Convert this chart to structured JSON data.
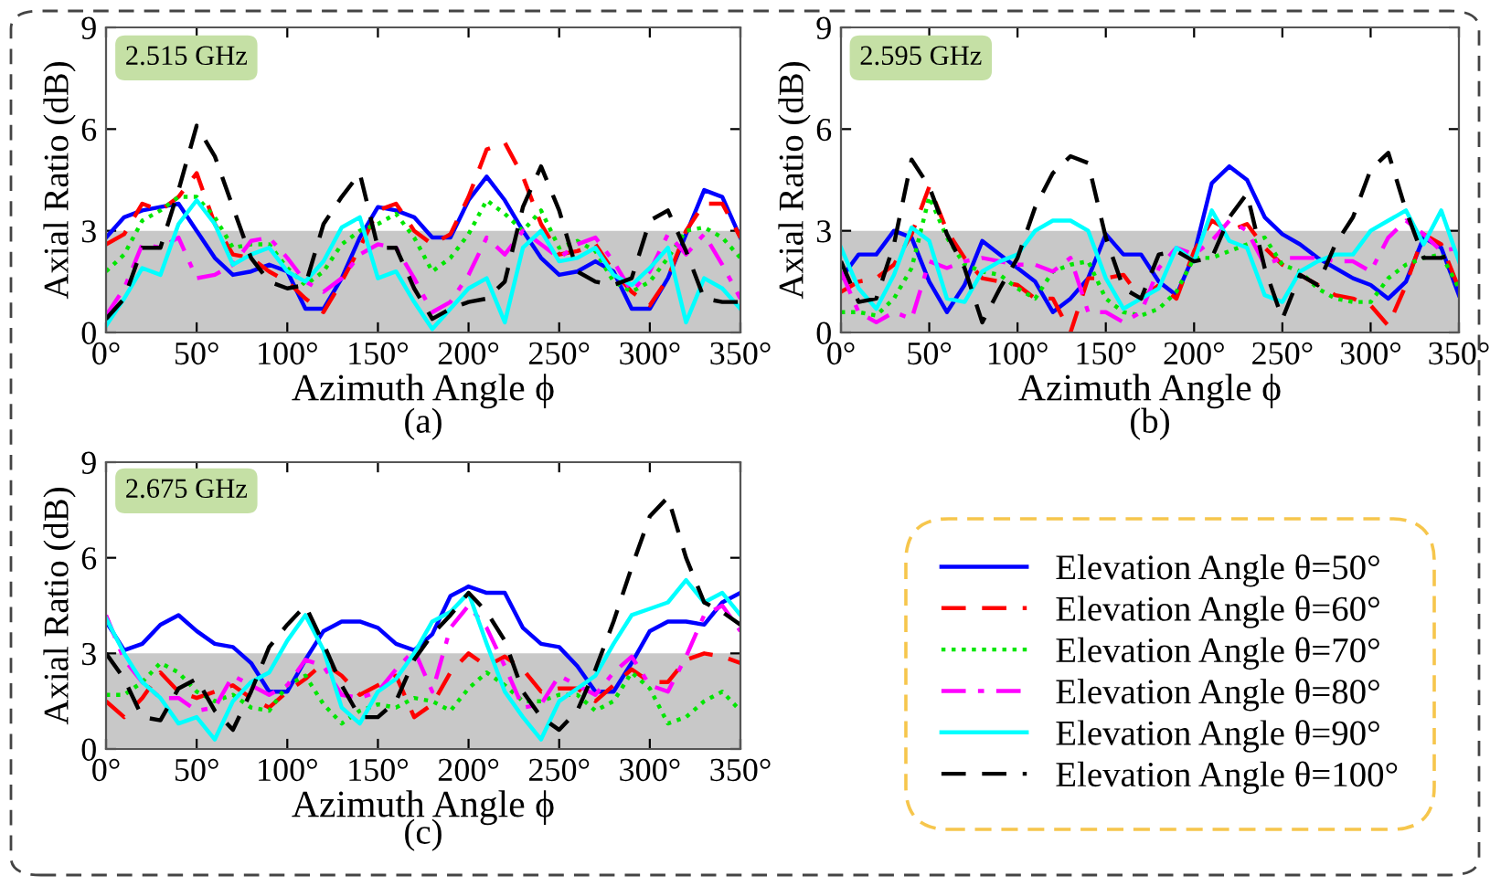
{
  "chart_data": [
    {
      "type": "line",
      "annotations": [
        "2.515 GHz",
        "(a)"
      ],
      "xlabel": "Azimuth Angle ϕ",
      "ylabel": "Axial Ratio (dB)",
      "x": [
        0,
        10,
        20,
        30,
        40,
        50,
        60,
        70,
        80,
        90,
        100,
        110,
        120,
        130,
        140,
        150,
        160,
        170,
        180,
        190,
        200,
        210,
        220,
        230,
        240,
        250,
        260,
        270,
        280,
        290,
        300,
        310,
        320,
        330,
        340,
        350
      ],
      "series": [
        {
          "color": "#0000ff",
          "line_style": "solid",
          "values": [
            2.8,
            3.4,
            3.6,
            3.7,
            3.8,
            3.0,
            2.2,
            1.7,
            1.8,
            2.0,
            1.8,
            0.7,
            0.7,
            1.6,
            2.8,
            3.7,
            3.6,
            3.4,
            2.8,
            2.8,
            3.9,
            4.6,
            3.9,
            3.0,
            2.2,
            1.7,
            1.8,
            2.1,
            1.8,
            0.7,
            0.7,
            1.6,
            2.9,
            4.2,
            4.0,
            2.8
          ]
        },
        {
          "color": "#ff0000",
          "line_style": "dashed",
          "values": [
            2.6,
            2.9,
            3.8,
            3.6,
            4.0,
            4.7,
            3.2,
            2.3,
            2.2,
            1.8,
            1.5,
            1.0,
            0.6,
            1.5,
            2.5,
            3.6,
            3.8,
            3.0,
            2.6,
            2.9,
            4.0,
            5.4,
            5.6,
            4.6,
            3.2,
            2.3,
            2.4,
            2.6,
            1.8,
            1.2,
            0.8,
            1.6,
            3.0,
            3.8,
            3.8,
            2.8
          ]
        },
        {
          "color": "#00e600",
          "line_style": "dotted",
          "values": [
            1.8,
            2.3,
            3.3,
            3.6,
            4.0,
            4.0,
            3.4,
            2.5,
            2.6,
            2.6,
            1.9,
            1.4,
            1.8,
            2.6,
            3.0,
            3.2,
            3.5,
            2.8,
            1.8,
            2.2,
            2.9,
            3.9,
            3.5,
            3.0,
            3.6,
            2.5,
            2.7,
            2.4,
            1.5,
            1.2,
            1.5,
            2.2,
            3.0,
            3.1,
            2.8,
            2.2
          ]
        },
        {
          "color": "#ff00ff",
          "line_style": "dashdot",
          "values": [
            0.5,
            1.3,
            2.6,
            2.5,
            2.8,
            1.6,
            1.7,
            2.0,
            2.7,
            2.8,
            2.2,
            1.5,
            1.2,
            1.6,
            2.3,
            2.6,
            2.5,
            1.6,
            0.6,
            0.9,
            1.7,
            2.8,
            2.3,
            3.0,
            2.6,
            2.2,
            2.6,
            2.8,
            2.1,
            1.2,
            1.8,
            2.9,
            2.3,
            2.9,
            2.0,
            1.0
          ]
        },
        {
          "color": "#00ffff",
          "line_style": "solid",
          "values": [
            0.2,
            1.0,
            1.9,
            1.7,
            3.2,
            3.9,
            3.2,
            2.0,
            2.3,
            2.5,
            1.8,
            1.5,
            2.1,
            3.1,
            3.4,
            1.6,
            1.8,
            0.9,
            0.1,
            0.7,
            1.3,
            1.6,
            0.3,
            2.5,
            3.0,
            2.1,
            2.2,
            2.5,
            1.7,
            1.4,
            1.9,
            2.5,
            0.3,
            1.6,
            1.3,
            0.7
          ]
        },
        {
          "color": "#000000",
          "line_style": "dashed",
          "values": [
            0.4,
            1.0,
            2.5,
            2.5,
            4.2,
            6.1,
            5.2,
            3.7,
            2.2,
            1.5,
            1.3,
            1.4,
            3.2,
            4.0,
            4.7,
            2.5,
            2.5,
            1.3,
            0.4,
            0.7,
            0.9,
            1.0,
            1.5,
            3.7,
            4.9,
            3.6,
            1.8,
            1.5,
            1.4,
            1.6,
            3.3,
            3.6,
            2.4,
            1.0,
            0.9,
            0.9
          ]
        }
      ],
      "xlim": [
        0,
        350
      ],
      "ylim": [
        0,
        9
      ],
      "xticks": [
        {
          "value": 0,
          "label": "0°"
        },
        {
          "value": 50,
          "label": "50°"
        },
        {
          "value": 100,
          "label": "100°"
        },
        {
          "value": 150,
          "label": "150°"
        },
        {
          "value": 200,
          "label": "200°"
        },
        {
          "value": 250,
          "label": "250°"
        },
        {
          "value": 300,
          "label": "300°"
        },
        {
          "value": 350,
          "label": "350°"
        }
      ],
      "yticks": [
        0,
        3,
        6,
        9
      ],
      "bands": [
        {
          "axis": "y",
          "from": 0,
          "to": 3,
          "color": "#c8c8c8"
        }
      ]
    },
    {
      "type": "line",
      "annotations": [
        "2.595 GHz",
        "(b)"
      ],
      "xlabel": "Azimuth Angle ϕ",
      "ylabel": "Axial Ratio (dB)",
      "x": [
        0,
        10,
        20,
        30,
        40,
        50,
        60,
        70,
        80,
        90,
        100,
        110,
        120,
        130,
        140,
        150,
        160,
        170,
        180,
        190,
        200,
        210,
        220,
        230,
        240,
        250,
        260,
        270,
        280,
        290,
        300,
        310,
        320,
        330,
        340,
        350
      ],
      "series": [
        {
          "color": "#0000ff",
          "line_style": "solid",
          "values": [
            1.6,
            2.3,
            2.3,
            3.0,
            2.8,
            1.5,
            0.6,
            1.4,
            2.7,
            2.3,
            1.9,
            1.5,
            0.6,
            1.0,
            1.6,
            2.9,
            2.3,
            2.3,
            1.5,
            1.1,
            2.3,
            4.4,
            4.9,
            4.5,
            3.4,
            2.9,
            2.6,
            2.2,
            1.9,
            1.6,
            1.4,
            1.0,
            1.5,
            2.8,
            2.5,
            1.1
          ]
        },
        {
          "color": "#ff0000",
          "line_style": "dashed",
          "values": [
            1.2,
            1.5,
            1.6,
            2.0,
            2.9,
            4.3,
            3.0,
            2.2,
            1.6,
            1.5,
            1.4,
            1.0,
            1.0,
            0.0,
            1.6,
            1.6,
            1.7,
            1.0,
            1.4,
            1.0,
            2.4,
            3.3,
            3.0,
            3.2,
            2.5,
            2.0,
            1.7,
            1.4,
            1.1,
            1.0,
            0.8,
            0.2,
            1.4,
            2.9,
            2.6,
            1.3
          ]
        },
        {
          "color": "#00e600",
          "line_style": "dotted",
          "values": [
            0.6,
            0.6,
            0.5,
            1.0,
            1.9,
            4.0,
            2.8,
            2.0,
            1.8,
            1.7,
            1.3,
            1.0,
            1.8,
            2.0,
            2.1,
            1.0,
            0.6,
            0.5,
            0.7,
            1.2,
            2.2,
            2.2,
            2.4,
            2.6,
            2.8,
            2.0,
            1.8,
            1.3,
            1.0,
            0.9,
            0.9,
            1.6,
            2.0,
            2.2,
            2.3,
            1.3
          ]
        },
        {
          "color": "#ff00ff",
          "line_style": "dashdot",
          "values": [
            1.8,
            0.6,
            0.3,
            0.6,
            0.4,
            2.1,
            1.9,
            2.1,
            2.2,
            2.1,
            2.0,
            2.0,
            1.8,
            2.2,
            0.6,
            0.6,
            0.3,
            0.6,
            1.9,
            2.5,
            2.3,
            2.7,
            3.3,
            3.0,
            2.0,
            2.2,
            2.2,
            2.2,
            2.1,
            2.1,
            1.8,
            2.8,
            3.3,
            2.9,
            2.4,
            2.5
          ]
        },
        {
          "color": "#00ffff",
          "line_style": "solid",
          "values": [
            2.5,
            1.3,
            0.7,
            1.7,
            3.1,
            2.7,
            1.0,
            0.9,
            1.8,
            2.1,
            2.3,
            3.0,
            3.3,
            3.3,
            3.0,
            1.6,
            0.7,
            1.0,
            1.3,
            2.5,
            2.1,
            3.6,
            2.7,
            2.5,
            1.1,
            0.9,
            1.8,
            2.1,
            2.3,
            2.3,
            3.0,
            3.3,
            3.6,
            2.6,
            3.6,
            2.1
          ]
        },
        {
          "color": "#000000",
          "line_style": "dashed",
          "values": [
            2.1,
            0.9,
            1.0,
            2.6,
            5.1,
            4.3,
            2.9,
            1.9,
            0.3,
            1.3,
            2.2,
            3.7,
            4.7,
            5.2,
            5.0,
            2.8,
            1.3,
            1.0,
            2.3,
            2.4,
            2.1,
            2.2,
            3.4,
            4.1,
            1.9,
            0.4,
            1.7,
            1.4,
            2.6,
            3.4,
            4.8,
            5.3,
            3.6,
            2.2,
            2.2,
            2.4
          ]
        }
      ],
      "xlim": [
        0,
        350
      ],
      "ylim": [
        0,
        9
      ],
      "xticks": [
        {
          "value": 0,
          "label": "0°"
        },
        {
          "value": 50,
          "label": "50°"
        },
        {
          "value": 100,
          "label": "100°"
        },
        {
          "value": 150,
          "label": "150°"
        },
        {
          "value": 200,
          "label": "200°"
        },
        {
          "value": 250,
          "label": "250°"
        },
        {
          "value": 300,
          "label": "300°"
        },
        {
          "value": 350,
          "label": "350°"
        }
      ],
      "yticks": [
        0,
        3,
        6,
        9
      ],
      "bands": [
        {
          "axis": "y",
          "from": 0,
          "to": 3,
          "color": "#c8c8c8"
        }
      ]
    },
    {
      "type": "line",
      "annotations": [
        "2.675 GHz",
        "(c)"
      ],
      "xlabel": "Azimuth Angle ϕ",
      "ylabel": "Axial Ratio (dB)",
      "legend": "right",
      "x": [
        0,
        10,
        20,
        30,
        40,
        50,
        60,
        70,
        80,
        90,
        100,
        110,
        120,
        130,
        140,
        150,
        160,
        170,
        180,
        190,
        200,
        210,
        220,
        230,
        240,
        250,
        260,
        270,
        280,
        290,
        300,
        310,
        320,
        330,
        340,
        350
      ],
      "series": [
        {
          "name": "Elevation Angle θ=50°",
          "color": "#0000ff",
          "line_style": "solid",
          "values": [
            4.0,
            3.1,
            3.3,
            3.9,
            4.2,
            3.7,
            3.3,
            3.2,
            2.7,
            1.8,
            1.8,
            2.8,
            3.7,
            4.0,
            4.0,
            3.8,
            3.3,
            3.1,
            3.6,
            4.8,
            5.1,
            4.9,
            4.9,
            3.8,
            3.3,
            3.2,
            2.6,
            1.8,
            1.8,
            2.7,
            3.7,
            4.0,
            4.0,
            3.9,
            4.6,
            4.9
          ]
        },
        {
          "name": "Elevation Angle θ=60°",
          "color": "#ff0000",
          "line_style": "dashed",
          "values": [
            1.5,
            1.0,
            1.6,
            2.4,
            1.8,
            1.6,
            1.8,
            2.0,
            1.6,
            1.3,
            1.8,
            2.2,
            2.7,
            2.3,
            1.7,
            2.0,
            2.3,
            1.0,
            1.4,
            2.4,
            3.0,
            2.6,
            2.9,
            2.5,
            1.8,
            1.9,
            1.9,
            1.5,
            2.0,
            2.5,
            2.1,
            2.1,
            2.8,
            3.0,
            2.9,
            2.7
          ]
        },
        {
          "name": "Elevation Angle θ=70°",
          "color": "#00e600",
          "line_style": "dotted",
          "values": [
            1.7,
            1.7,
            2.1,
            2.7,
            2.4,
            1.8,
            1.5,
            1.7,
            1.3,
            1.2,
            2.0,
            2.3,
            1.4,
            0.8,
            1.2,
            1.4,
            1.3,
            1.6,
            1.5,
            1.2,
            1.9,
            2.4,
            2.0,
            1.5,
            1.5,
            1.7,
            1.7,
            1.2,
            1.5,
            2.4,
            1.9,
            0.8,
            1.0,
            1.5,
            1.8,
            1.2
          ]
        },
        {
          "name": "Elevation Angle θ=80°",
          "color": "#ff00ff",
          "line_style": "dashdot",
          "values": [
            4.2,
            2.8,
            2.1,
            1.6,
            1.6,
            1.2,
            1.3,
            2.3,
            2.0,
            1.7,
            2.0,
            2.8,
            2.6,
            1.7,
            1.6,
            1.8,
            2.5,
            3.1,
            1.8,
            3.8,
            4.5,
            3.8,
            2.6,
            1.3,
            1.4,
            2.3,
            2.0,
            1.7,
            2.4,
            2.9,
            2.0,
            1.8,
            2.9,
            4.2,
            4.5,
            3.7
          ]
        },
        {
          "name": "Elevation Angle θ=90°",
          "color": "#00ffff",
          "line_style": "solid",
          "values": [
            4.1,
            3.0,
            2.1,
            1.6,
            0.8,
            1.0,
            0.3,
            1.5,
            2.1,
            2.4,
            3.4,
            4.2,
            3.1,
            1.3,
            0.8,
            1.8,
            2.2,
            3.0,
            4.0,
            4.3,
            4.9,
            3.3,
            1.8,
            1.0,
            0.3,
            1.5,
            1.9,
            2.3,
            3.3,
            4.2,
            4.4,
            4.6,
            5.3,
            4.6,
            4.9,
            4.2
          ]
        },
        {
          "name": "Elevation Angle θ=100°",
          "color": "#000000",
          "line_style": "dashed",
          "values": [
            3.0,
            2.2,
            1.0,
            0.9,
            1.9,
            2.2,
            1.2,
            0.6,
            1.8,
            3.2,
            3.9,
            4.5,
            3.3,
            2.0,
            1.0,
            1.0,
            1.5,
            2.8,
            3.6,
            4.2,
            4.9,
            4.3,
            3.4,
            1.8,
            1.0,
            0.6,
            1.2,
            2.5,
            4.0,
            5.7,
            7.3,
            7.9,
            6.0,
            4.6,
            4.3,
            3.9
          ]
        }
      ],
      "xlim": [
        0,
        350
      ],
      "ylim": [
        0,
        9
      ],
      "xticks": [
        {
          "value": 0,
          "label": "0°"
        },
        {
          "value": 50,
          "label": "50°"
        },
        {
          "value": 100,
          "label": "100°"
        },
        {
          "value": 150,
          "label": "150°"
        },
        {
          "value": 200,
          "label": "200°"
        },
        {
          "value": 250,
          "label": "250°"
        },
        {
          "value": 300,
          "label": "300°"
        },
        {
          "value": 350,
          "label": "350°"
        }
      ],
      "yticks": [
        0,
        3,
        6,
        9
      ],
      "bands": [
        {
          "axis": "y",
          "from": 0,
          "to": 3,
          "color": "#c8c8c8"
        }
      ]
    }
  ]
}
